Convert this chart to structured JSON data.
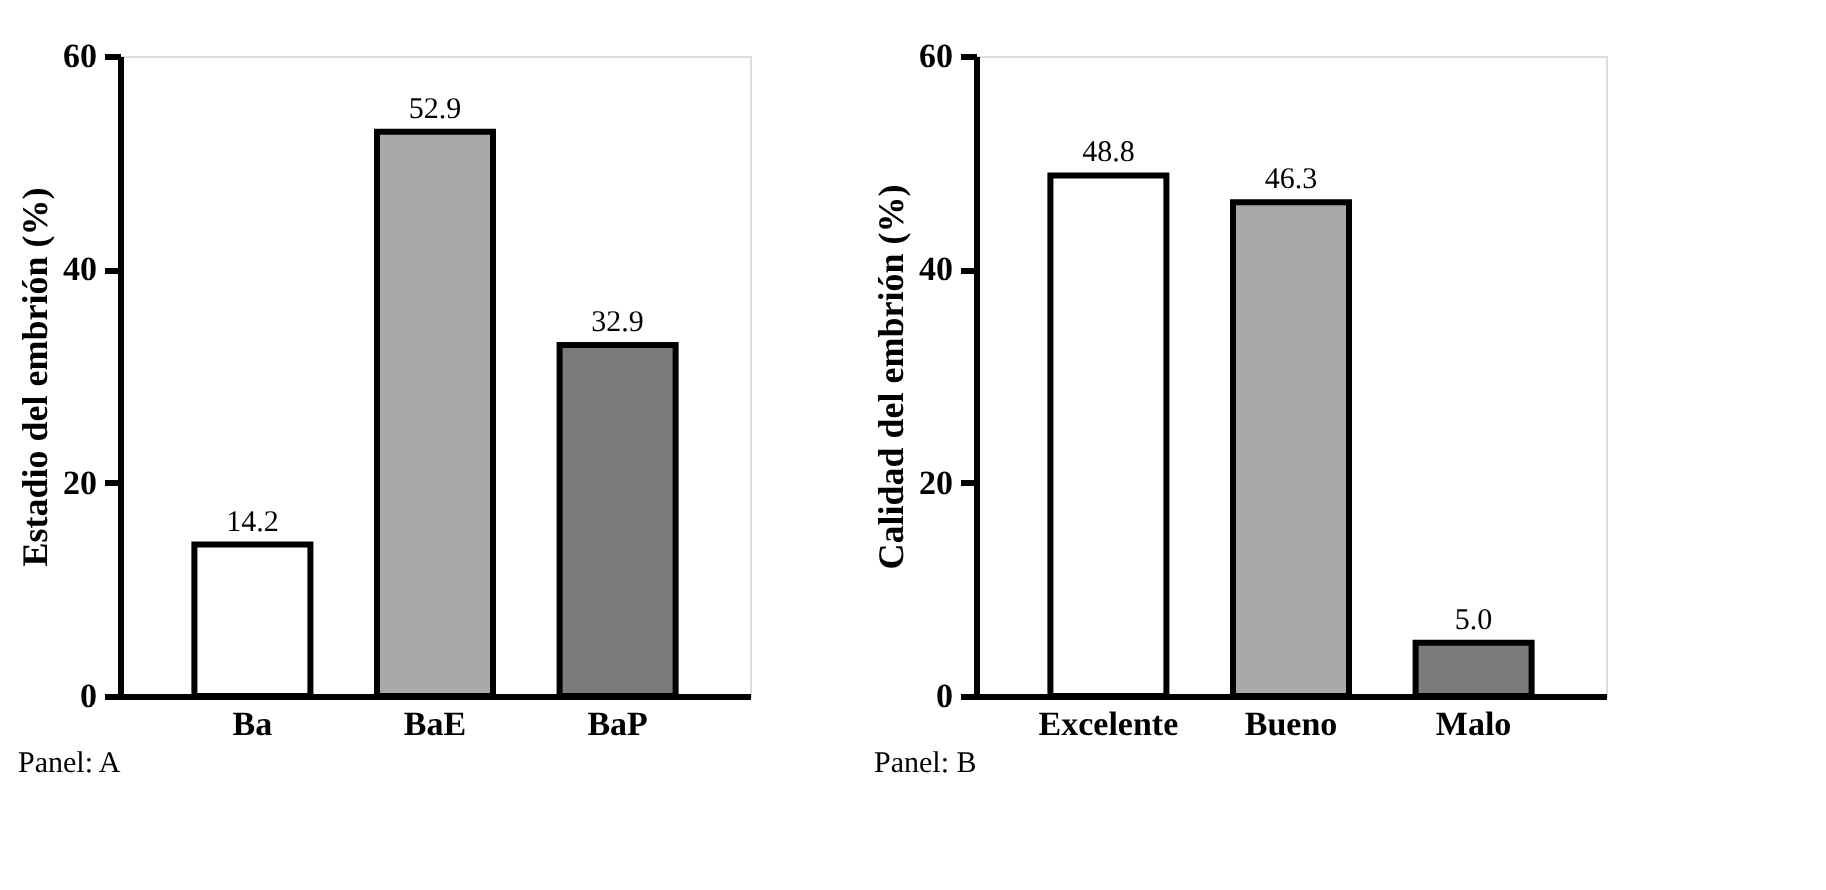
{
  "chart_data": [
    {
      "type": "bar",
      "ylabel": "Estadio del embrión (%)",
      "categories": [
        "Ba",
        "BaE",
        "BaP"
      ],
      "values": [
        14.2,
        52.9,
        32.9
      ],
      "value_labels": [
        "14.2",
        "52.9",
        "32.9"
      ],
      "colors": [
        "#ffffff",
        "#a9a9ab",
        "#7b7b7b"
      ],
      "ylim": [
        0,
        60
      ],
      "yticks": [
        0,
        20,
        40,
        60
      ],
      "grid": false,
      "legend": false,
      "annotations": [
        "Panel: A"
      ]
    },
    {
      "type": "bar",
      "ylabel": "Calidad del embrión (%)",
      "categories": [
        "Excelente",
        "Bueno",
        "Malo"
      ],
      "values": [
        48.8,
        46.3,
        5.0
      ],
      "value_labels": [
        "48.8",
        "46.3",
        "5.0"
      ],
      "colors": [
        "#ffffff",
        "#a9a9ab",
        "#7b7b7b"
      ],
      "ylim": [
        0,
        60
      ],
      "yticks": [
        0,
        20,
        40,
        60
      ],
      "grid": false,
      "legend": false,
      "annotations": [
        "Panel: B"
      ]
    }
  ]
}
